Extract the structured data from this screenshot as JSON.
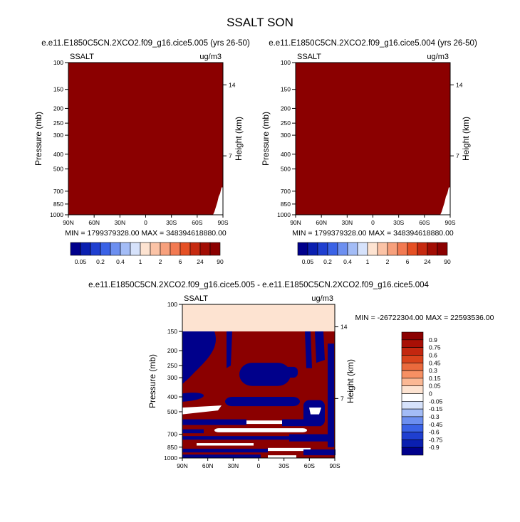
{
  "figure": {
    "title": "SSALT SON",
    "colors": {
      "dark_red": "#8b0000",
      "peach": "#fde3d1",
      "navy": "#00008b",
      "white": "#ffffff"
    }
  },
  "chart_data": [
    {
      "type": "heatmap",
      "title": "e.e11.E1850C5CN.2XCO2.f09_g16.cice5.005 (yrs 26-50)",
      "left_label": "SSALT",
      "right_label": "ug/m3",
      "ylabel": "Pressure (mb)",
      "ylabel_right": "Height (km)",
      "y_ticks": [
        "100",
        "150",
        "200",
        "250",
        "300",
        "400",
        "500",
        "700",
        "850",
        "1000"
      ],
      "y_ticks_right": [
        "14",
        "7"
      ],
      "x_ticks": [
        "90N",
        "60N",
        "30N",
        "0",
        "30S",
        "60S",
        "90S"
      ],
      "stats": "MIN = 1799379328.00  MAX = 348394618880.00",
      "colorbar": {
        "orientation": "horizontal",
        "labels": [
          "0.05",
          "0.2",
          "0.4",
          "1",
          "2",
          "6",
          "24",
          "90"
        ],
        "colors": [
          "#00008b",
          "#0a1fb0",
          "#1f3fd0",
          "#3a62e6",
          "#6c8ff0",
          "#a3bcf6",
          "#d6e2fb",
          "#fde3d1",
          "#fbc3a6",
          "#f7a07c",
          "#f27a52",
          "#e55024",
          "#c62a10",
          "#a20d04",
          "#8b0000"
        ]
      },
      "field_note": "Field saturated at highest contour (>90) over almost the whole section."
    },
    {
      "type": "heatmap",
      "title": "e.e11.E1850C5CN.2XCO2.f09_g16.cice5.004 (yrs 26-50)",
      "left_label": "SSALT",
      "right_label": "ug/m3",
      "ylabel": "Pressure (mb)",
      "ylabel_right": "Height (km)",
      "y_ticks": [
        "100",
        "150",
        "200",
        "250",
        "300",
        "400",
        "500",
        "700",
        "850",
        "1000"
      ],
      "y_ticks_right": [
        "14",
        "7"
      ],
      "x_ticks": [
        "90N",
        "60N",
        "30N",
        "0",
        "30S",
        "60S",
        "90S"
      ],
      "stats": "MIN = 1799379328.00  MAX = 348394618880.00",
      "colorbar": {
        "orientation": "horizontal",
        "labels": [
          "0.05",
          "0.2",
          "0.4",
          "1",
          "2",
          "6",
          "24",
          "90"
        ],
        "colors": [
          "#00008b",
          "#0a1fb0",
          "#1f3fd0",
          "#3a62e6",
          "#6c8ff0",
          "#a3bcf6",
          "#d6e2fb",
          "#fde3d1",
          "#fbc3a6",
          "#f7a07c",
          "#f27a52",
          "#e55024",
          "#c62a10",
          "#a20d04",
          "#8b0000"
        ]
      }
    },
    {
      "type": "heatmap",
      "title": "e.e11.E1850C5CN.2XCO2.f09_g16.cice5.005 - e.e11.E1850C5CN.2XCO2.f09_g16.cice5.004",
      "left_label": "SSALT",
      "right_label": "ug/m3",
      "ylabel": "Pressure (mb)",
      "ylabel_right": "Height (km)",
      "y_ticks": [
        "100",
        "150",
        "200",
        "250",
        "300",
        "400",
        "500",
        "700",
        "850",
        "1000"
      ],
      "y_ticks_right": [
        "14",
        "7"
      ],
      "x_ticks": [
        "90N",
        "60N",
        "30N",
        "0",
        "30S",
        "60S",
        "90S"
      ],
      "stats": "MIN = -26722304.00  MAX = 22593536.00",
      "colorbar": {
        "orientation": "vertical",
        "labels": [
          "0.9",
          "0.75",
          "0.6",
          "0.45",
          "0.3",
          "0.15",
          "0.05",
          "0",
          "-0.05",
          "-0.15",
          "-0.3",
          "-0.45",
          "-0.6",
          "-0.75",
          "-0.9"
        ],
        "colors": [
          "#8b0000",
          "#a80f05",
          "#c3270f",
          "#d9431c",
          "#ea6a3d",
          "#f79063",
          "#fbb894",
          "#fde3d1",
          "#ffffff",
          "#d6e2fb",
          "#a3bcf6",
          "#6c8ff0",
          "#3a62e6",
          "#1f3fd0",
          "#0a1fb0",
          "#00008b"
        ]
      },
      "field_note": "Pattern alternates between strong positive (red) and strong negative (navy) differences below 150 mb; near-zero (peach) above 150 mb."
    }
  ]
}
